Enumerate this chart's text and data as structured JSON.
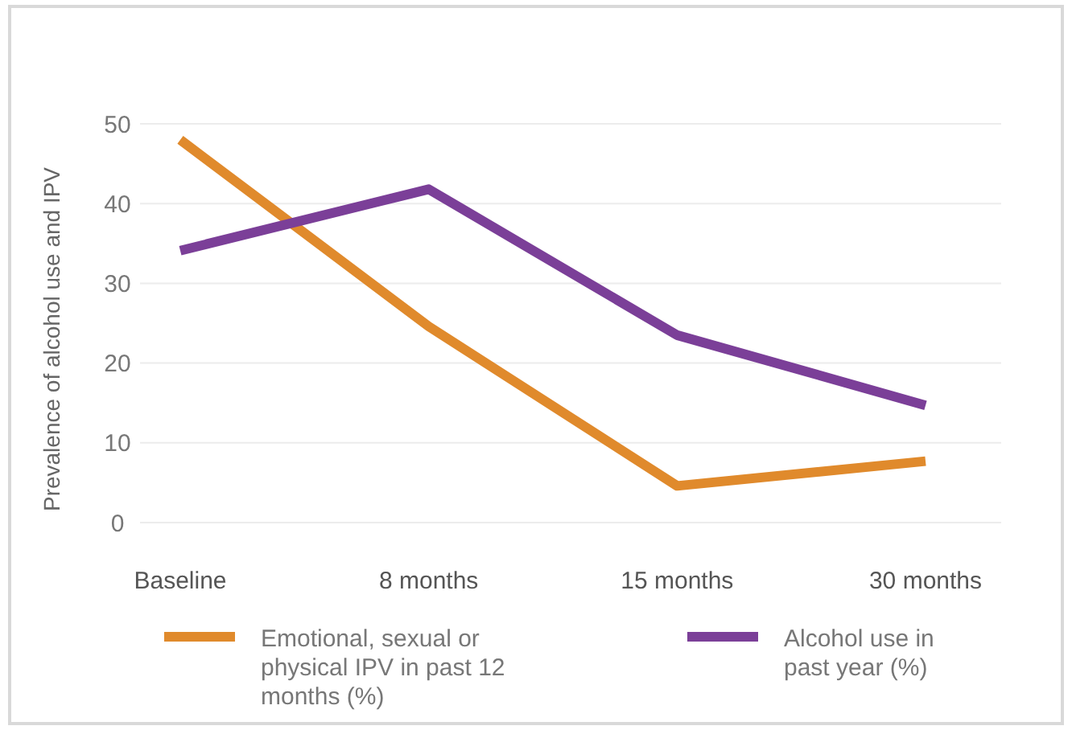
{
  "chart_data": {
    "type": "line",
    "ylabel": "Prevalence of alcohol use and IPV",
    "categories": [
      "Baseline",
      "8 months",
      "15 months",
      "30 months"
    ],
    "series": [
      {
        "name": "Emotional, sexual or physical IPV in past 12 months (%)",
        "color": "#e08a2c",
        "values": [
          48.0,
          24.6,
          4.6,
          7.7
        ]
      },
      {
        "name": "Alcohol use in past year (%)",
        "color": "#7b3f98",
        "values": [
          34.1,
          41.8,
          23.5,
          14.7
        ]
      }
    ],
    "ylim": [
      0,
      50
    ],
    "yticks": [
      0,
      10,
      20,
      30,
      40,
      50
    ],
    "grid": "y",
    "legend": "bottom",
    "marker": "none",
    "line_style": "solid"
  }
}
